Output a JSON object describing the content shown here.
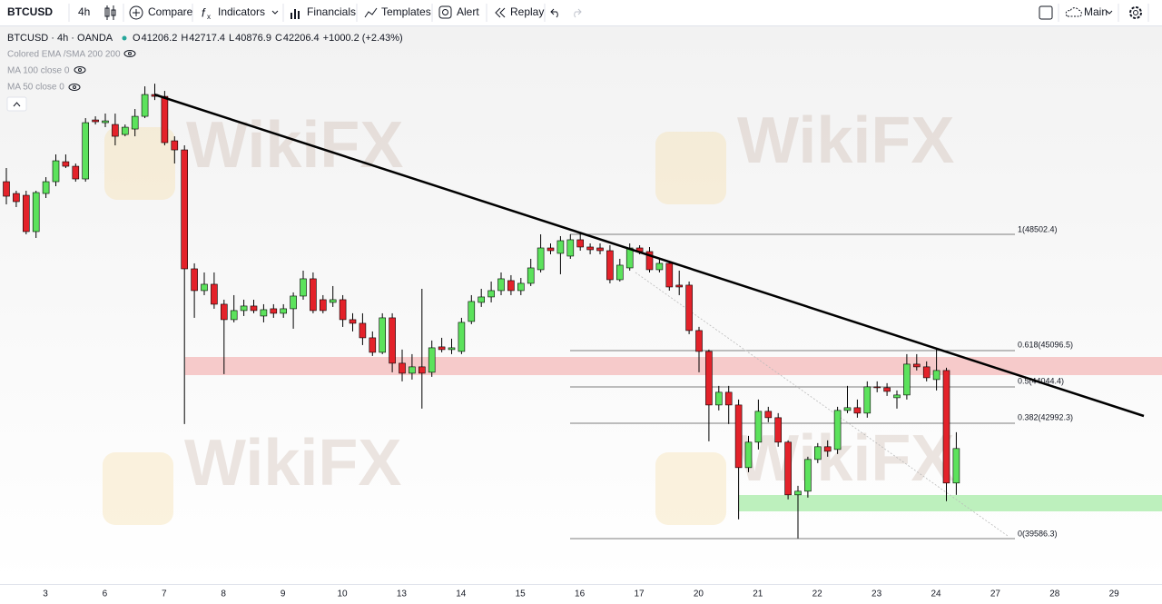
{
  "toolbar": {
    "symbol": "BTCUSD",
    "interval": "4h",
    "compare": "Compare",
    "indicators": "Indicators",
    "financials": "Financials",
    "templates": "Templates",
    "alert": "Alert",
    "replay": "Replay",
    "layout": "Main"
  },
  "legend": {
    "title": "BTCUSD · 4h · OANDA",
    "ohlc": [
      {
        "label": "O",
        "value": "41206.2"
      },
      {
        "label": "H",
        "value": "42717.4"
      },
      {
        "label": "L",
        "value": "40876.9"
      },
      {
        "label": "C",
        "value": "42206.4"
      }
    ],
    "change": "+1000.2 (+2.43%)",
    "indicators": [
      "Colored EMA /SMA 200 200",
      "MA 100 close 0",
      "MA 50 close 0"
    ]
  },
  "fib_labels": [
    "1(48502.4)",
    "0.618(45096.5)",
    "0.5(44044.4)",
    "0.382(42992.3)",
    "0(39586.3)"
  ],
  "watermark": "WikiFX",
  "chart": {
    "type": "candlestick",
    "ylim": [
      38255,
      54570
    ],
    "up_color": "#5ce25c",
    "down_color": "#e3222a",
    "x_labels": [
      "3",
      "6",
      "7",
      "8",
      "9",
      "10",
      "13",
      "14",
      "15",
      "16",
      "17",
      "20",
      "21",
      "22",
      "23",
      "24",
      "27",
      "28",
      "29"
    ],
    "candles": [
      [
        50045,
        50444,
        49380,
        49619
      ],
      [
        49699,
        49779,
        49300,
        49460
      ],
      [
        49646,
        49779,
        48502,
        48582
      ],
      [
        48582,
        49779,
        48396,
        49726
      ],
      [
        49699,
        50178,
        49566,
        50045
      ],
      [
        50045,
        50843,
        49912,
        50657
      ],
      [
        50630,
        50843,
        50444,
        50497
      ],
      [
        50497,
        50577,
        50045,
        50125
      ],
      [
        50125,
        51907,
        50045,
        51774
      ],
      [
        51854,
        51960,
        51721,
        51801
      ],
      [
        51774,
        52040,
        51641,
        51827
      ],
      [
        51721,
        52040,
        51109,
        51375
      ],
      [
        51428,
        51721,
        51375,
        51641
      ],
      [
        51588,
        52173,
        51375,
        51960
      ],
      [
        51960,
        52838,
        51907,
        52599
      ],
      [
        52599,
        52918,
        52439,
        52545
      ],
      [
        52545,
        52705,
        51109,
        51189
      ],
      [
        51242,
        51375,
        50577,
        50976
      ],
      [
        50976,
        51109,
        42943,
        47491
      ],
      [
        47491,
        47651,
        46055,
        46853
      ],
      [
        46853,
        47385,
        46720,
        47039
      ],
      [
        47039,
        47385,
        46321,
        46454
      ],
      [
        46454,
        46587,
        44406,
        46002
      ],
      [
        46002,
        46720,
        45922,
        46268
      ],
      [
        46268,
        46587,
        46108,
        46401
      ],
      [
        46401,
        46587,
        46188,
        46268
      ],
      [
        46108,
        46454,
        45922,
        46294
      ],
      [
        46321,
        46454,
        46055,
        46188
      ],
      [
        46188,
        46454,
        46055,
        46321
      ],
      [
        46321,
        46800,
        45736,
        46693
      ],
      [
        46693,
        47438,
        46587,
        47199
      ],
      [
        47199,
        47385,
        46188,
        46268
      ],
      [
        46587,
        46720,
        46188,
        46268
      ],
      [
        46507,
        46986,
        46374,
        46587
      ],
      [
        46587,
        46720,
        45789,
        46002
      ],
      [
        46002,
        46188,
        45656,
        45895
      ],
      [
        45895,
        46188,
        45257,
        45470
      ],
      [
        45470,
        45656,
        44938,
        45044
      ],
      [
        45044,
        46188,
        44991,
        46055
      ],
      [
        46055,
        46188,
        44459,
        44725
      ],
      [
        44725,
        45124,
        44193,
        44432
      ],
      [
        44432,
        44991,
        44246,
        44619
      ],
      [
        44619,
        46906,
        43395,
        44432
      ],
      [
        44459,
        45390,
        44326,
        45177
      ],
      [
        45204,
        45470,
        45044,
        45124
      ],
      [
        45124,
        45443,
        44991,
        45177
      ],
      [
        45071,
        46055,
        44991,
        45922
      ],
      [
        45949,
        46720,
        45869,
        46534
      ],
      [
        46507,
        46906,
        46374,
        46667
      ],
      [
        46667,
        47119,
        46507,
        46853
      ],
      [
        46853,
        47385,
        46720,
        47199
      ],
      [
        47146,
        47305,
        46720,
        46853
      ],
      [
        46853,
        47225,
        46720,
        47066
      ],
      [
        47066,
        47784,
        46986,
        47518
      ],
      [
        47465,
        48502,
        47385,
        48103
      ],
      [
        48103,
        48236,
        47917,
        48023
      ],
      [
        47944,
        48449,
        47332,
        48316
      ],
      [
        47864,
        48502,
        47784,
        48343
      ],
      [
        48343,
        48529,
        48023,
        48130
      ],
      [
        48130,
        48236,
        47917,
        48050
      ],
      [
        48103,
        48236,
        47917,
        48023
      ],
      [
        48023,
        48183,
        47066,
        47172
      ],
      [
        47172,
        47784,
        47119,
        47598
      ],
      [
        47518,
        48236,
        47438,
        48103
      ],
      [
        48103,
        48183,
        47917,
        47997
      ],
      [
        47997,
        48130,
        47385,
        47465
      ],
      [
        47465,
        47784,
        47385,
        47651
      ],
      [
        47651,
        47731,
        46853,
        46959
      ],
      [
        47013,
        47438,
        46720,
        46959
      ],
      [
        47013,
        47119,
        45577,
        45683
      ],
      [
        45683,
        45789,
        44459,
        45071
      ],
      [
        45071,
        45124,
        42437,
        43501
      ],
      [
        43501,
        44060,
        43342,
        43874
      ],
      [
        43874,
        44060,
        42943,
        43501
      ],
      [
        43501,
        43661,
        40150,
        41666
      ],
      [
        41666,
        42597,
        41533,
        42411
      ],
      [
        42411,
        43661,
        42198,
        43315
      ],
      [
        43315,
        43448,
        42996,
        43129
      ],
      [
        43129,
        43262,
        42278,
        42411
      ],
      [
        42411,
        42464,
        40735,
        40868
      ],
      [
        40868,
        41134,
        39591,
        40974
      ],
      [
        40974,
        41985,
        40788,
        41905
      ],
      [
        41905,
        42384,
        41799,
        42278
      ],
      [
        42278,
        42464,
        41985,
        42145
      ],
      [
        42198,
        43448,
        42065,
        43342
      ],
      [
        43342,
        44060,
        43262,
        43422
      ],
      [
        43422,
        43661,
        43129,
        43262
      ],
      [
        43262,
        44193,
        43129,
        44033
      ],
      [
        44033,
        44193,
        43874,
        44007
      ],
      [
        44007,
        44140,
        43767,
        43900
      ],
      [
        43714,
        43927,
        43395,
        43794
      ],
      [
        43794,
        44991,
        43661,
        44698
      ],
      [
        44698,
        44991,
        44512,
        44619
      ],
      [
        44619,
        44778,
        44193,
        44299
      ],
      [
        44246,
        45124,
        43927,
        44512
      ],
      [
        44512,
        44592,
        40682,
        41214
      ],
      [
        41214,
        42703,
        40868,
        42225
      ]
    ]
  }
}
